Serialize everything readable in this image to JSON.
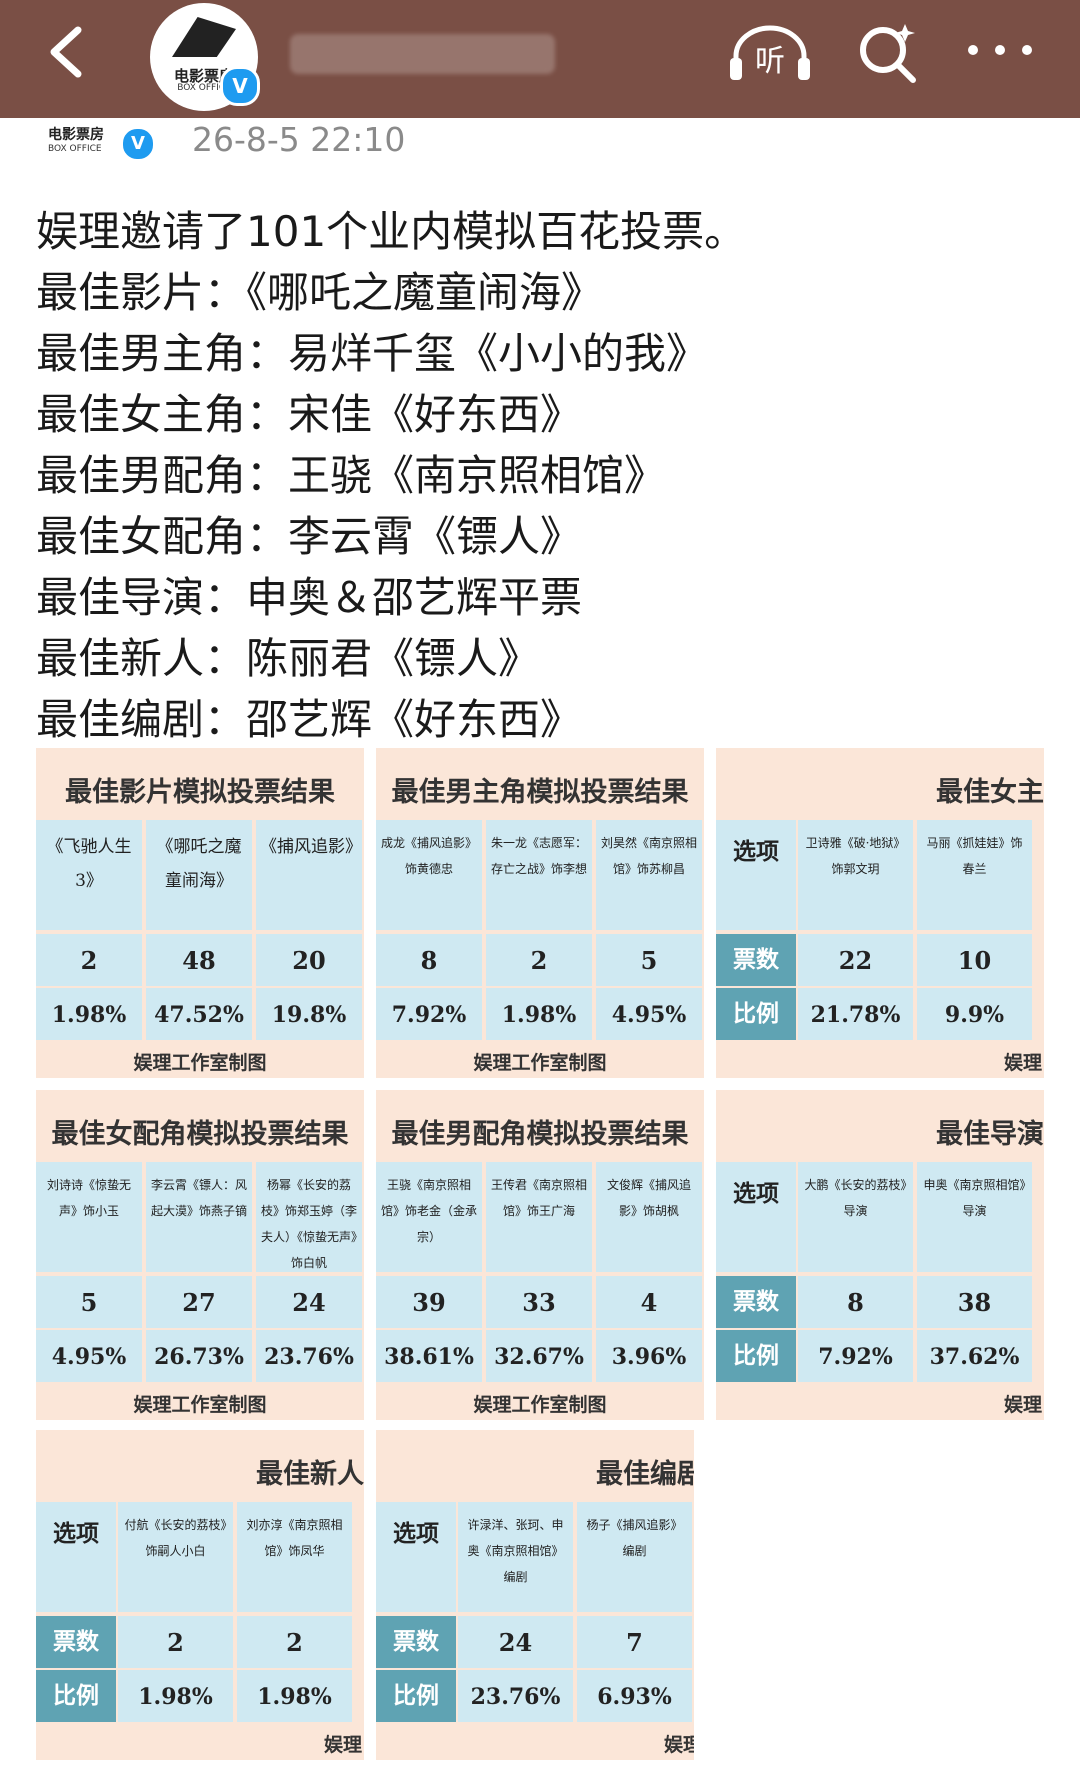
{
  "header": {
    "listen_label": "听",
    "badge": "V"
  },
  "account": {
    "logo_name": "电影票房",
    "logo_sub": "BOX OFFICE",
    "badge": "V"
  },
  "post": {
    "timestamp": "26-8-5 22:10",
    "lines": [
      "娱理邀请了101个业内模拟百花投票。",
      "最佳影片：《哪吒之魔童闹海》",
      "最佳男主角：易烊千玺《小小的我》",
      "最佳女主角：宋佳《好东西》",
      "最佳男配角：王骁《南京照相馆》",
      "最佳女配角：李云霄《镖人》",
      "最佳导演：申奥＆邵艺辉平票",
      "最佳新人：陈丽君《镖人》",
      "最佳编剧：邵艺辉《好东西》"
    ]
  },
  "tiles": [
    {
      "title": "最佳影片模拟投票结果",
      "footer": "娱理工作室制图",
      "label_col": false,
      "options": [
        "《飞驰人生3》",
        "《哪吒之魔童闹海》",
        "《捕风追影》"
      ],
      "votes": [
        "2",
        "48",
        "20"
      ],
      "pcts": [
        "1.98%",
        "47.52%",
        "19.8%"
      ]
    },
    {
      "title": "最佳男主角模拟投票结果",
      "footer": "娱理工作室制图",
      "label_col": false,
      "options": [
        "成龙《捕风追影》饰黄德忠",
        "朱一龙《志愿军：存亡之战》饰李想",
        "刘昊然《南京照相馆》饰苏柳昌"
      ],
      "votes": [
        "8",
        "2",
        "5"
      ],
      "pcts": [
        "7.92%",
        "1.98%",
        "4.95%"
      ]
    },
    {
      "title": "最佳女主",
      "footer": "娱理",
      "label_col": true,
      "labels": [
        "选项",
        "票数",
        "比例"
      ],
      "options": [
        "卫诗雅《破·地狱》饰郭文玥",
        "马丽《抓娃娃》饰春兰"
      ],
      "votes": [
        "22",
        "10"
      ],
      "pcts": [
        "21.78%",
        "9.9%"
      ]
    },
    {
      "title": "最佳女配角模拟投票结果",
      "footer": "娱理工作室制图",
      "label_col": false,
      "options": [
        "刘诗诗《惊蛰无声》饰小玉",
        "李云霄《镖人：风起大漠》饰燕子镝",
        "杨幂《长安的荔枝》饰郑玉婷（李夫人）《惊蛰无声》饰白帆"
      ],
      "votes": [
        "5",
        "27",
        "24"
      ],
      "pcts": [
        "4.95%",
        "26.73%",
        "23.76%"
      ]
    },
    {
      "title": "最佳男配角模拟投票结果",
      "footer": "娱理工作室制图",
      "label_col": false,
      "options": [
        "王骁《南京照相馆》饰老金（金承宗）",
        "王传君《南京照相馆》饰王广海",
        "文俊辉《捕风追影》饰胡枫"
      ],
      "votes": [
        "39",
        "33",
        "4"
      ],
      "pcts": [
        "38.61%",
        "32.67%",
        "3.96%"
      ]
    },
    {
      "title": "最佳导演",
      "footer": "娱理",
      "label_col": true,
      "labels": [
        "选项",
        "票数",
        "比例"
      ],
      "options": [
        "大鹏《长安的荔枝》导演",
        "申奥《南京照相馆》导演"
      ],
      "votes": [
        "8",
        "38"
      ],
      "pcts": [
        "7.92%",
        "37.62%"
      ]
    },
    {
      "title": "最佳新人",
      "footer": "娱理",
      "label_col": true,
      "labels": [
        "选项",
        "票数",
        "比例"
      ],
      "options": [
        "付航《长安的荔枝》饰嗣人小白",
        "刘亦淳《南京照相馆》饰凤华"
      ],
      "votes": [
        "2",
        "2"
      ],
      "pcts": [
        "1.98%",
        "1.98%"
      ]
    },
    {
      "title": "最佳编剧",
      "footer": "娱理",
      "label_col": true,
      "labels": [
        "选项",
        "票数",
        "比例"
      ],
      "options": [
        "许渌洋、张珂、申奥《南京照相馆》编剧",
        "杨子《捕风追影》编剧"
      ],
      "votes": [
        "24",
        "7"
      ],
      "pcts": [
        "23.76%",
        "6.93%"
      ]
    }
  ]
}
